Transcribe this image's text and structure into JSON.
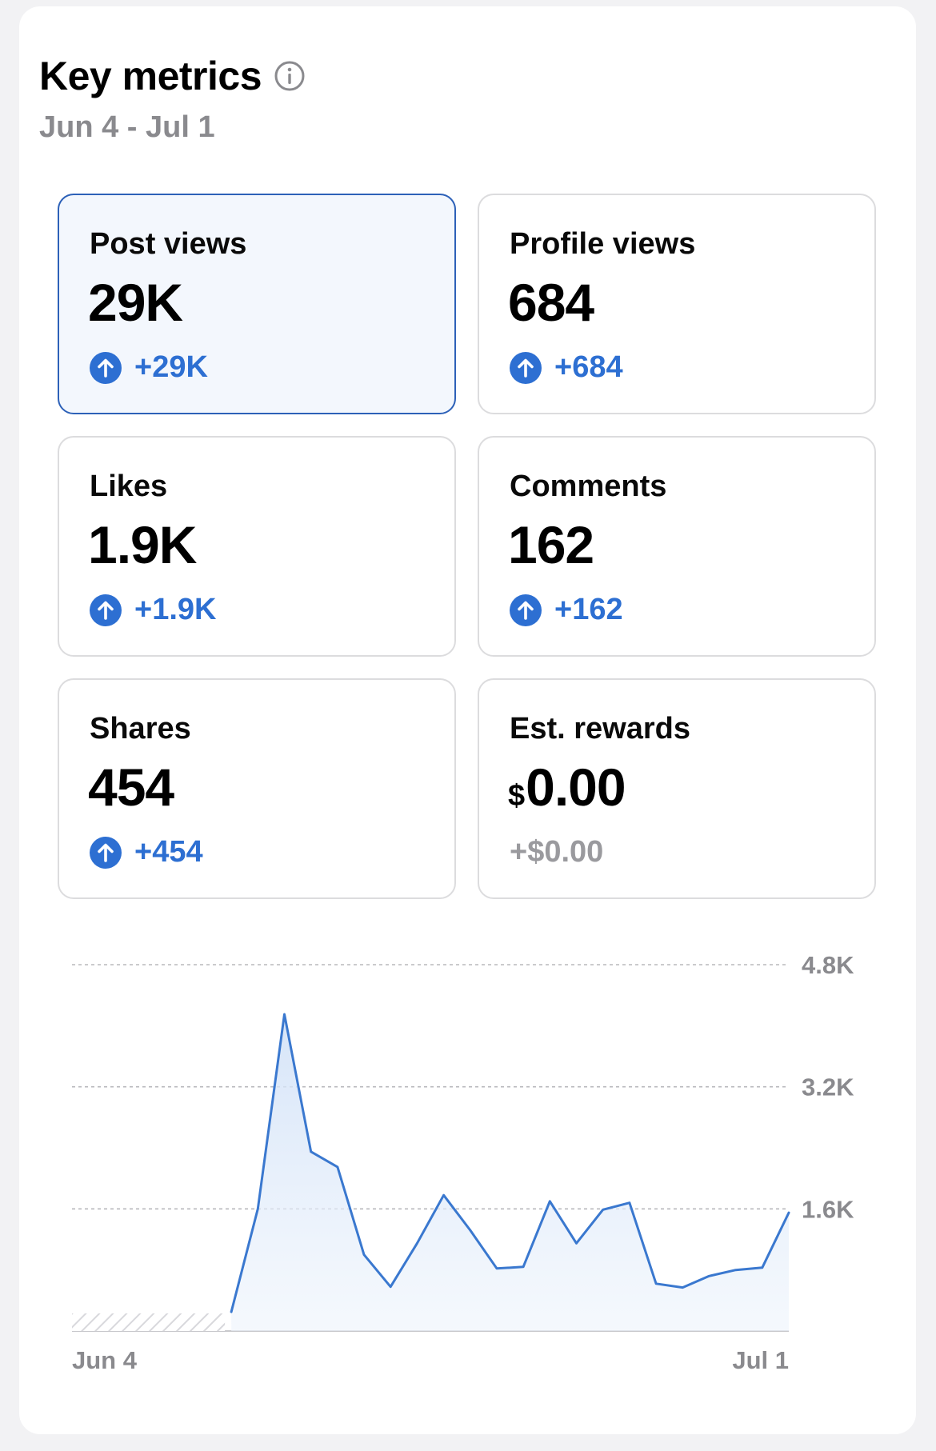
{
  "header": {
    "title": "Key metrics",
    "date_range": "Jun 4 - Jul 1",
    "info_icon": "info-circle-icon"
  },
  "metrics": [
    {
      "label": "Post views",
      "value": "29K",
      "change": "+29K",
      "trend": "up",
      "selected": true
    },
    {
      "label": "Profile views",
      "value": "684",
      "change": "+684",
      "trend": "up",
      "selected": false
    },
    {
      "label": "Likes",
      "value": "1.9K",
      "change": "+1.9K",
      "trend": "up",
      "selected": false
    },
    {
      "label": "Comments",
      "value": "162",
      "change": "+162",
      "trend": "up",
      "selected": false
    },
    {
      "label": "Shares",
      "value": "454",
      "change": "+454",
      "trend": "up",
      "selected": false
    },
    {
      "label": "Est. rewards",
      "currency": "$",
      "value": "0.00",
      "change": "+$0.00",
      "trend": "none",
      "selected": false
    }
  ],
  "colors": {
    "accent": "#2d6fd2",
    "selected_border": "#2d61b8",
    "muted": "#8a8a8e"
  },
  "chart_data": {
    "type": "area",
    "series": [
      {
        "values": [
          null,
          null,
          null,
          null,
          null,
          null,
          250,
          1600,
          4150,
          2350,
          2150,
          1000,
          580,
          1150,
          1780,
          1320,
          820,
          840,
          1700,
          1150,
          1590,
          1680,
          620,
          570,
          720,
          800,
          830,
          1550
        ]
      }
    ],
    "x_labels": [
      "Jun 4",
      "Jul 1"
    ],
    "y_ticks": [
      {
        "value": 1600,
        "label": "1.6K"
      },
      {
        "value": 3200,
        "label": "3.2K"
      },
      {
        "value": 4800,
        "label": "4.8K"
      }
    ],
    "ylim": [
      0,
      4800
    ],
    "grid": true,
    "no_data_days": 6
  }
}
